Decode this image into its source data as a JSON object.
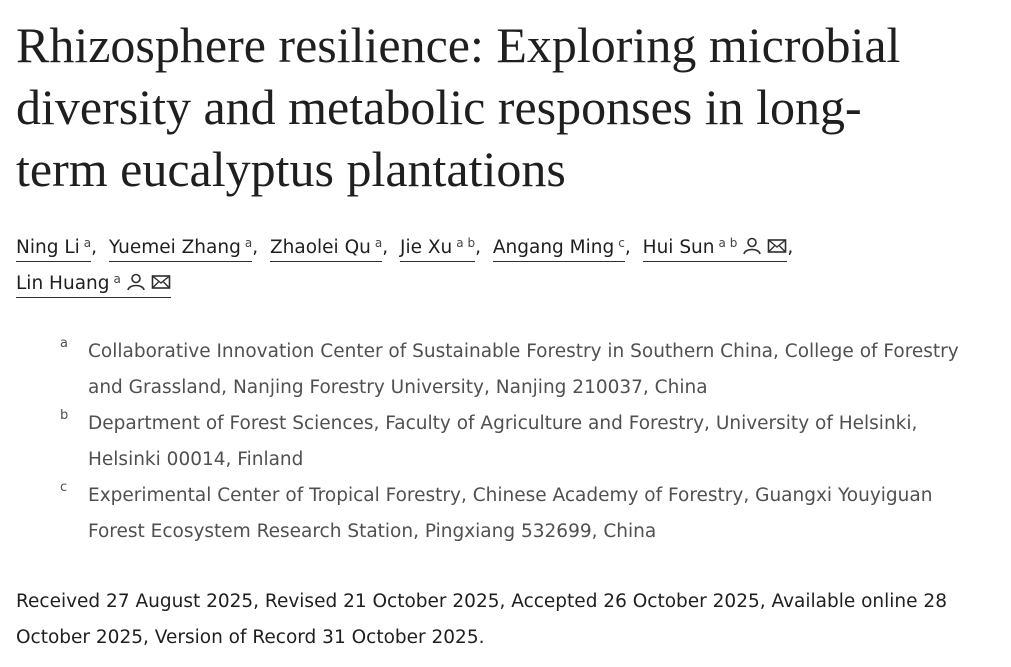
{
  "title_lines": [
    "Rhizosphere resilience: Exploring microbial",
    "diversity and metabolic responses in long-",
    "term eucalyptus plantations"
  ],
  "authors": {
    "separator": ",",
    "list": [
      {
        "name": "Ning Li",
        "affiliations": [
          "a"
        ]
      },
      {
        "name": "Yuemei Zhang",
        "affiliations": [
          "a"
        ]
      },
      {
        "name": "Zhaolei Qu",
        "affiliations": [
          "a"
        ]
      },
      {
        "name": "Jie Xu",
        "affiliations": [
          "a",
          "b"
        ]
      },
      {
        "name": "Angang Ming",
        "affiliations": [
          "c"
        ]
      },
      {
        "name": "Hui Sun",
        "affiliations": [
          "a",
          "b"
        ],
        "corresponding": true,
        "email": true
      },
      {
        "name": "Lin Huang",
        "affiliations": [
          "a"
        ],
        "corresponding": true,
        "email": true
      }
    ]
  },
  "affiliations": [
    {
      "label": "a",
      "text": "Collaborative Innovation Center of Sustainable Forestry in Southern China, College of Forestry and Grassland, Nanjing Forestry University, Nanjing 210037, China"
    },
    {
      "label": "b",
      "text": "Department of Forest Sciences, Faculty of Agriculture and Forestry, University of Helsinki, Helsinki 00014, Finland"
    },
    {
      "label": "c",
      "text": "Experimental Center of Tropical Forestry, Chinese Academy of Forestry, Guangxi Youyiguan Forest Ecosystem Research Station, Pingxiang 532699, China"
    }
  ],
  "dates": "Received 27 August 2025, Revised 21 October 2025, Accepted 26 October 2025, Available online 28 October 2025, Version of Record 31 October 2025."
}
